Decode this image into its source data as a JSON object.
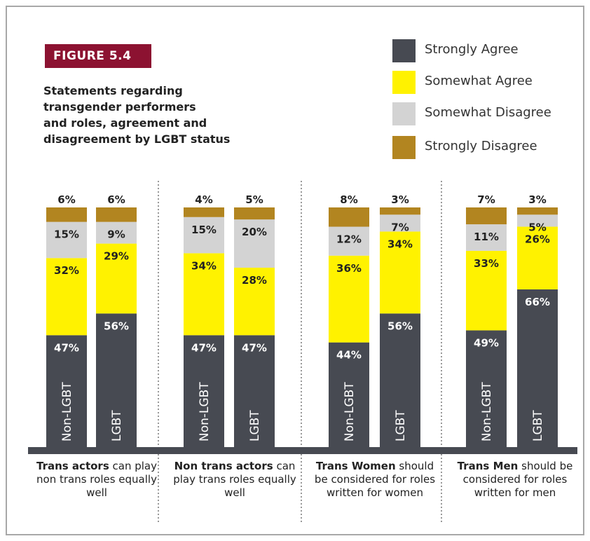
{
  "figure_label": "FIGURE 5.4",
  "colors": {
    "strongly_agree": "#474a52",
    "somewhat_agree": "#fff200",
    "somewhat_disagree": "#d3d3d3",
    "strongly_disagree": "#b28520",
    "badge": "#8c1231"
  },
  "chart_data": {
    "type": "bar",
    "stacked": true,
    "title": "Statements regarding\ntransgender performers\nand roles, agreement and\ndisagreement  by LGBT status",
    "legend_placement": "top-right",
    "legend": [
      "Strongly Agree",
      "Somewhat Agree",
      "Somewhat Disagree",
      "Strongly Disagree"
    ],
    "groups": [
      {
        "caption_bold": "Trans actors",
        "caption_rest": " can play non trans roles equally well",
        "bars": [
          {
            "label": "Non-LGBT",
            "values": [
              47,
              32,
              15,
              6
            ]
          },
          {
            "label": "LGBT",
            "values": [
              56,
              29,
              9,
              6
            ]
          }
        ]
      },
      {
        "caption_bold": "Non trans actors",
        "caption_rest": " can play trans roles equally well",
        "bars": [
          {
            "label": "Non-LGBT",
            "values": [
              47,
              34,
              15,
              4
            ]
          },
          {
            "label": "LGBT",
            "values": [
              47,
              28,
              20,
              5
            ]
          }
        ]
      },
      {
        "caption_bold": "Trans Women",
        "caption_rest": " should be considered for roles written for women",
        "bars": [
          {
            "label": "Non-LGBT",
            "values": [
              44,
              36,
              12,
              8
            ]
          },
          {
            "label": "LGBT",
            "values": [
              56,
              34,
              7,
              3
            ]
          }
        ]
      },
      {
        "caption_bold": "Trans Men",
        "caption_rest": " should be considered for roles written for men",
        "bars": [
          {
            "label": "Non-LGBT",
            "values": [
              49,
              33,
              11,
              7
            ]
          },
          {
            "label": "LGBT",
            "values": [
              66,
              26,
              5,
              3
            ]
          }
        ]
      }
    ],
    "value_suffix": "%"
  }
}
